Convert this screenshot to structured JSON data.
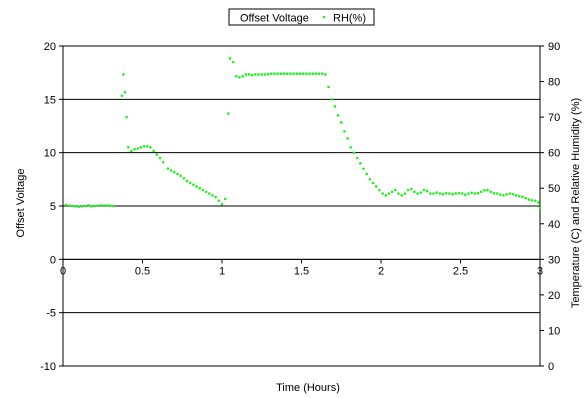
{
  "chart_data": {
    "type": "scatter",
    "title": "",
    "xlabel": "Time (Hours)",
    "ylabel_left": "Offset Voltage",
    "ylabel_right": "Temperature (C) and Relative Humidity (%)",
    "xlim": [
      0,
      3
    ],
    "ylim_left": [
      -10,
      20
    ],
    "ylim_right": [
      0,
      90
    ],
    "x_ticks": [
      "0",
      "0.5",
      "1",
      "1.5",
      "2",
      "2.5",
      "3"
    ],
    "y_left_ticks": [
      "-10",
      "-5",
      "0",
      "5",
      "10",
      "15",
      "20"
    ],
    "y_right_ticks": [
      "0",
      "10",
      "20",
      "30",
      "40",
      "50",
      "60",
      "70",
      "80",
      "90"
    ],
    "grid": "horizontal",
    "legend": {
      "position": "top-center",
      "entries": [
        {
          "label": "Offset Voltage",
          "marker": "none"
        },
        {
          "label": "RH(%)",
          "marker": "dot",
          "color": "#22ee22"
        }
      ]
    },
    "series": [
      {
        "name": "RH(%)",
        "axis": "right",
        "color": "#22ee22",
        "points": [
          [
            0.02,
            45.3
          ],
          [
            0.04,
            45.1
          ],
          [
            0.06,
            45.0
          ],
          [
            0.08,
            44.9
          ],
          [
            0.1,
            44.8
          ],
          [
            0.12,
            44.9
          ],
          [
            0.14,
            45.0
          ],
          [
            0.16,
            45.2
          ],
          [
            0.18,
            44.9
          ],
          [
            0.2,
            45.0
          ],
          [
            0.22,
            45.1
          ],
          [
            0.24,
            45.2
          ],
          [
            0.26,
            45.1
          ],
          [
            0.28,
            45.2
          ],
          [
            0.3,
            45.1
          ],
          [
            0.32,
            45.0
          ],
          [
            0.37,
            76.0
          ],
          [
            0.38,
            82.0
          ],
          [
            0.39,
            77.0
          ],
          [
            0.4,
            70.0
          ],
          [
            0.41,
            61.5
          ],
          [
            0.43,
            60.5
          ],
          [
            0.45,
            61.0
          ],
          [
            0.47,
            61.2
          ],
          [
            0.49,
            61.5
          ],
          [
            0.51,
            61.8
          ],
          [
            0.53,
            61.8
          ],
          [
            0.55,
            61.5
          ],
          [
            0.57,
            60.5
          ],
          [
            0.59,
            59.5
          ],
          [
            0.61,
            58.5
          ],
          [
            0.63,
            57.3
          ],
          [
            0.66,
            55.5
          ],
          [
            0.68,
            55.0
          ],
          [
            0.7,
            54.5
          ],
          [
            0.72,
            54.0
          ],
          [
            0.74,
            53.5
          ],
          [
            0.76,
            52.8
          ],
          [
            0.78,
            52.0
          ],
          [
            0.8,
            51.5
          ],
          [
            0.82,
            51.0
          ],
          [
            0.84,
            50.5
          ],
          [
            0.86,
            50.0
          ],
          [
            0.88,
            49.5
          ],
          [
            0.9,
            49.0
          ],
          [
            0.92,
            48.5
          ],
          [
            0.94,
            48.0
          ],
          [
            0.96,
            47.5
          ],
          [
            0.98,
            46.5
          ],
          [
            1.0,
            45.5
          ],
          [
            1.02,
            47.0
          ],
          [
            1.04,
            71.0
          ],
          [
            1.05,
            86.5
          ],
          [
            1.07,
            85.5
          ],
          [
            1.09,
            81.5
          ],
          [
            1.11,
            81.2
          ],
          [
            1.13,
            81.5
          ],
          [
            1.15,
            82.0
          ],
          [
            1.17,
            82.0
          ],
          [
            1.19,
            81.8
          ],
          [
            1.21,
            82.0
          ],
          [
            1.23,
            82.0
          ],
          [
            1.25,
            82.0
          ],
          [
            1.27,
            82.0
          ],
          [
            1.29,
            82.1
          ],
          [
            1.31,
            82.2
          ],
          [
            1.33,
            82.2
          ],
          [
            1.35,
            82.2
          ],
          [
            1.37,
            82.2
          ],
          [
            1.39,
            82.2
          ],
          [
            1.41,
            82.2
          ],
          [
            1.43,
            82.2
          ],
          [
            1.45,
            82.2
          ],
          [
            1.47,
            82.2
          ],
          [
            1.49,
            82.2
          ],
          [
            1.51,
            82.2
          ],
          [
            1.53,
            82.2
          ],
          [
            1.55,
            82.2
          ],
          [
            1.57,
            82.2
          ],
          [
            1.59,
            82.2
          ],
          [
            1.61,
            82.2
          ],
          [
            1.63,
            82.2
          ],
          [
            1.65,
            82.0
          ],
          [
            1.67,
            78.5
          ],
          [
            1.69,
            75.0
          ],
          [
            1.71,
            73.0
          ],
          [
            1.73,
            70.5
          ],
          [
            1.75,
            68.5
          ],
          [
            1.77,
            66.0
          ],
          [
            1.79,
            64.0
          ],
          [
            1.81,
            61.5
          ],
          [
            1.83,
            60.0
          ],
          [
            1.85,
            58.5
          ],
          [
            1.87,
            57.0
          ],
          [
            1.89,
            55.5
          ],
          [
            1.91,
            54.0
          ],
          [
            1.93,
            52.5
          ],
          [
            1.95,
            51.5
          ],
          [
            1.97,
            50.5
          ],
          [
            1.99,
            49.5
          ],
          [
            2.01,
            48.5
          ],
          [
            2.03,
            48.0
          ],
          [
            2.05,
            48.5
          ],
          [
            2.07,
            49.0
          ],
          [
            2.09,
            49.5
          ],
          [
            2.11,
            48.5
          ],
          [
            2.13,
            48.0
          ],
          [
            2.15,
            48.5
          ],
          [
            2.17,
            49.5
          ],
          [
            2.19,
            49.8
          ],
          [
            2.21,
            49.0
          ],
          [
            2.23,
            48.5
          ],
          [
            2.25,
            48.8
          ],
          [
            2.27,
            49.5
          ],
          [
            2.29,
            49.2
          ],
          [
            2.31,
            48.5
          ],
          [
            2.33,
            48.5
          ],
          [
            2.35,
            48.8
          ],
          [
            2.37,
            48.5
          ],
          [
            2.39,
            48.3
          ],
          [
            2.41,
            48.6
          ],
          [
            2.43,
            48.5
          ],
          [
            2.45,
            48.3
          ],
          [
            2.47,
            48.5
          ],
          [
            2.49,
            48.6
          ],
          [
            2.51,
            48.5
          ],
          [
            2.53,
            48.2
          ],
          [
            2.55,
            48.5
          ],
          [
            2.57,
            48.7
          ],
          [
            2.59,
            48.5
          ],
          [
            2.61,
            48.6
          ],
          [
            2.63,
            49.0
          ],
          [
            2.65,
            49.4
          ],
          [
            2.67,
            49.5
          ],
          [
            2.69,
            49.0
          ],
          [
            2.71,
            48.6
          ],
          [
            2.73,
            48.5
          ],
          [
            2.75,
            48.2
          ],
          [
            2.77,
            48.0
          ],
          [
            2.79,
            48.3
          ],
          [
            2.81,
            48.5
          ],
          [
            2.83,
            48.3
          ],
          [
            2.85,
            48.0
          ],
          [
            2.87,
            47.8
          ],
          [
            2.89,
            47.6
          ],
          [
            2.91,
            47.2
          ],
          [
            2.93,
            46.8
          ],
          [
            2.95,
            46.6
          ],
          [
            2.97,
            46.5
          ],
          [
            2.99,
            46.0
          ],
          [
            3.0,
            44.5
          ]
        ]
      }
    ]
  }
}
